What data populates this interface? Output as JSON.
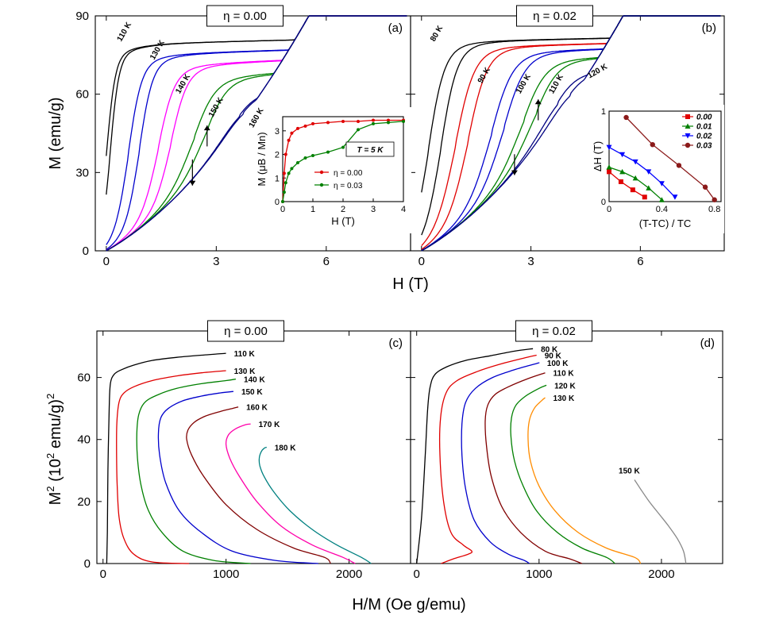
{
  "chart_data": [
    {
      "id": "a",
      "type": "line",
      "panel_label": "(a)",
      "header": "η = 0.00",
      "xlabel": "H (T)",
      "ylabel": "M (emu/g)",
      "xlim": [
        -0.3,
        8.3
      ],
      "ylim": [
        0,
        90
      ],
      "xticks": [
        0,
        3,
        6
      ],
      "yticks": [
        0,
        30,
        60,
        90
      ],
      "arrow_note": "down arrow on decreasing-field branch, up arrow on increasing-field branch near 150 K",
      "series": [
        {
          "name": "110 K",
          "color": "#000000",
          "Hc": 0.05,
          "w": 0.12,
          "Msat": 79.0,
          "slope": 0.35,
          "hyst": 0.1
        },
        {
          "name": "130 K",
          "color": "#0000cc",
          "Hc": 0.75,
          "w": 0.18,
          "Msat": 75.0,
          "slope": 0.45,
          "hyst": 0.3
        },
        {
          "name": "140 K",
          "color": "#ff00ff",
          "Hc": 1.6,
          "w": 0.22,
          "Msat": 71.0,
          "slope": 0.6,
          "hyst": 0.35
        },
        {
          "name": "150 K",
          "color": "#008000",
          "Hc": 2.6,
          "w": 0.3,
          "Msat": 66.0,
          "slope": 1.0,
          "hyst": 0.35
        },
        {
          "name": "160 K",
          "color": "#000080",
          "Hc": 3.7,
          "w": 0.33,
          "Msat": 60.0,
          "slope": 1.4,
          "hyst": 0.1
        }
      ],
      "inset": {
        "type": "line",
        "xlabel": "H (T)",
        "ylabel": "M (μB / Mn)",
        "xlim": [
          0,
          4
        ],
        "ylim": [
          0,
          3.6
        ],
        "xticks": [
          0,
          1,
          2,
          3,
          4
        ],
        "yticks": [
          0,
          1,
          2,
          3
        ],
        "note": "T = 5 K",
        "series": [
          {
            "name": "η = 0.00",
            "color": "#e00000",
            "x": [
              0,
              0.05,
              0.1,
              0.2,
              0.3,
              0.5,
              0.75,
              1.0,
              1.5,
              2.0,
              2.5,
              3.0,
              3.5,
              4.0
            ],
            "y": [
              0,
              1.2,
              2.0,
              2.6,
              2.9,
              3.1,
              3.2,
              3.3,
              3.35,
              3.4,
              3.4,
              3.45,
              3.45,
              3.45
            ]
          },
          {
            "name": "η = 0.03",
            "color": "#008000",
            "x": [
              0,
              0.05,
              0.1,
              0.2,
              0.3,
              0.5,
              0.75,
              1.0,
              1.5,
              2.0,
              2.5,
              3.0,
              3.5,
              4.0
            ],
            "y": [
              0,
              0.4,
              0.8,
              1.2,
              1.4,
              1.65,
              1.85,
              1.95,
              2.1,
              2.3,
              3.05,
              3.3,
              3.35,
              3.4
            ]
          }
        ]
      }
    },
    {
      "id": "b",
      "type": "line",
      "panel_label": "(b)",
      "header": "η = 0.02",
      "xlabel": "H (T)",
      "ylabel": "M (emu/g)",
      "xlim": [
        -0.3,
        8.3
      ],
      "ylim": [
        0,
        90
      ],
      "xticks": [
        0,
        3,
        6
      ],
      "yticks": [
        0,
        30,
        60,
        90
      ],
      "series": [
        {
          "name": "80 K",
          "color": "#000000",
          "Hc": 0.35,
          "w": 0.22,
          "Msat": 80.0,
          "slope": 0.3,
          "hyst": 0.35
        },
        {
          "name": "90 K",
          "color": "#e00000",
          "Hc": 1.1,
          "w": 0.26,
          "Msat": 78.0,
          "slope": 0.35,
          "hyst": 0.35
        },
        {
          "name": "100 K",
          "color": "#0000cc",
          "Hc": 2.1,
          "w": 0.3,
          "Msat": 76.0,
          "slope": 0.45,
          "hyst": 0.35
        },
        {
          "name": "110 K",
          "color": "#008000",
          "Hc": 3.0,
          "w": 0.32,
          "Msat": 73.0,
          "slope": 0.6,
          "hyst": 0.35
        },
        {
          "name": "120 K",
          "color": "#000080",
          "Hc": 3.9,
          "w": 0.35,
          "Msat": 68.0,
          "slope": 0.9,
          "hyst": 0.35
        }
      ],
      "inset": {
        "type": "line",
        "xlabel": "(T-TC) / TC",
        "ylabel": "ΔH (T)",
        "xlim": [
          0,
          0.85
        ],
        "ylim": [
          0,
          1
        ],
        "xticks": [
          0.0,
          0.4,
          0.8
        ],
        "yticks": [
          0,
          1
        ],
        "series": [
          {
            "name": "0.00",
            "color": "#e00000",
            "marker": "square",
            "x": [
              0,
              0.09,
              0.18,
              0.27
            ],
            "y": [
              0.33,
              0.22,
              0.13,
              0.05
            ]
          },
          {
            "name": "0.01",
            "color": "#008000",
            "marker": "triangle-up",
            "x": [
              0,
              0.1,
              0.2,
              0.3,
              0.4
            ],
            "y": [
              0.38,
              0.33,
              0.26,
              0.15,
              0.02
            ]
          },
          {
            "name": "0.02",
            "color": "#0000ff",
            "marker": "triangle-down",
            "x": [
              0,
              0.1,
              0.2,
              0.3,
              0.4,
              0.5
            ],
            "y": [
              0.6,
              0.52,
              0.44,
              0.33,
              0.2,
              0.05
            ]
          },
          {
            "name": "0.03",
            "color": "#8b1a1a",
            "marker": "circle",
            "x": [
              0.13,
              0.33,
              0.53,
              0.73,
              0.8
            ],
            "y": [
              0.93,
              0.63,
              0.4,
              0.16,
              0.02
            ]
          }
        ]
      }
    },
    {
      "id": "c",
      "type": "line",
      "panel_label": "(c)",
      "header": "η = 0.00",
      "xlabel": "H/M (Oe g/emu)",
      "ylabel": "M2 (102 emu/g)2",
      "xlim": [
        -50,
        2500
      ],
      "ylim": [
        0,
        75
      ],
      "xticks": [
        0,
        1000,
        2000
      ],
      "yticks": [
        0,
        20,
        40,
        60
      ],
      "series": [
        {
          "name": "110 K",
          "color": "#000000",
          "x": [
            30,
            35,
            40,
            50,
            60,
            90,
            150,
            250,
            400,
            600,
            800,
            1000
          ],
          "y": [
            0,
            10,
            30,
            50,
            58,
            61,
            62.5,
            64,
            65.5,
            66.5,
            67.2,
            67.8
          ]
        },
        {
          "name": "130 K",
          "color": "#e00000",
          "x": [
            700,
            400,
            250,
            170,
            130,
            115,
            110,
            112,
            130,
            170,
            250,
            400,
            600,
            800,
            1000
          ],
          "y": [
            0,
            0.5,
            3,
            8,
            15,
            25,
            35,
            45,
            52,
            55,
            57,
            59,
            60.5,
            61.5,
            62.2
          ]
        },
        {
          "name": "140 K",
          "color": "#008000",
          "x": [
            1200,
            900,
            650,
            480,
            370,
            310,
            280,
            275,
            290,
            340,
            450,
            600,
            800,
            1000,
            1080
          ],
          "y": [
            0,
            1,
            4,
            10,
            17,
            25,
            34,
            42,
            48,
            52,
            54.5,
            56.5,
            58,
            59,
            59.5
          ]
        },
        {
          "name": "150 K",
          "color": "#0000cc",
          "x": [
            1750,
            1400,
            1050,
            800,
            620,
            510,
            460,
            450,
            470,
            530,
            650,
            800,
            950,
            1060
          ],
          "y": [
            0,
            1,
            4,
            10,
            17,
            26,
            35,
            42,
            47,
            50,
            52.5,
            54,
            55,
            55.5
          ]
        },
        {
          "name": "160 K",
          "color": "#800000",
          "x": [
            1850,
            1800,
            1550,
            1250,
            1000,
            820,
            720,
            680,
            690,
            740,
            830,
            950,
            1050,
            1100
          ],
          "y": [
            0,
            2,
            5,
            11,
            19,
            28,
            35,
            40,
            43,
            45.5,
            47.5,
            49,
            50,
            50.5
          ]
        },
        {
          "name": "170 K",
          "color": "#ff00aa",
          "x": [
            2050,
            1950,
            1700,
            1450,
            1250,
            1110,
            1030,
            1000,
            1020,
            1080,
            1160,
            1200
          ],
          "y": [
            0,
            2,
            6,
            12,
            20,
            28,
            34,
            38.5,
            41.5,
            43.5,
            44.8,
            45
          ]
        },
        {
          "name": "180 K",
          "color": "#008080",
          "x": [
            2180,
            2100,
            1900,
            1700,
            1520,
            1390,
            1310,
            1275,
            1270,
            1285,
            1310,
            1330
          ],
          "y": [
            0,
            2,
            6,
            11,
            17,
            23,
            28,
            31.5,
            34,
            36,
            37.2,
            37.5
          ]
        }
      ]
    },
    {
      "id": "d",
      "type": "line",
      "panel_label": "(d)",
      "header": "η = 0.02",
      "xlabel": "H/M (Oe g/emu)",
      "ylabel": "M2 (102 emu/g)2",
      "xlim": [
        -50,
        2500
      ],
      "ylim": [
        0,
        75
      ],
      "xticks": [
        0,
        1000,
        2000
      ],
      "yticks": [
        0,
        20,
        40,
        60
      ],
      "series": [
        {
          "name": "80 K",
          "color": "#000000",
          "x": [
            0,
            40,
            70,
            90,
            110,
            150,
            250,
            400,
            600,
            800,
            950
          ],
          "y": [
            0,
            15,
            35,
            50,
            57,
            61,
            63.5,
            65.5,
            67,
            68.5,
            69.3
          ]
        },
        {
          "name": "90 K",
          "color": "#e00000",
          "x": [
            200,
            300,
            420,
            450,
            380,
            280,
            220,
            190,
            195,
            240,
            330,
            500,
            700,
            900,
            980
          ],
          "y": [
            0,
            1.5,
            3,
            4,
            6,
            10,
            20,
            35,
            47,
            55,
            59,
            62,
            64.5,
            66.5,
            67.2
          ]
        },
        {
          "name": "100 K",
          "color": "#0000cc",
          "x": [
            920,
            880,
            750,
            600,
            470,
            400,
            370,
            370,
            400,
            480,
            620,
            800,
            980,
            1000
          ],
          "y": [
            0,
            1,
            3,
            7,
            14,
            24,
            35,
            45,
            52,
            56.5,
            60,
            62.5,
            64.5,
            64.8
          ]
        },
        {
          "name": "110 K",
          "color": "#800000",
          "x": [
            1350,
            1250,
            1050,
            850,
            700,
            610,
            570,
            560,
            580,
            640,
            750,
            900,
            1050
          ],
          "y": [
            0,
            1.5,
            4,
            10,
            18,
            28,
            38,
            46,
            51,
            54.5,
            57,
            59.5,
            61.5
          ]
        },
        {
          "name": "120 K",
          "color": "#008000",
          "x": [
            1620,
            1550,
            1350,
            1150,
            980,
            870,
            800,
            770,
            775,
            810,
            890,
            1000,
            1060
          ],
          "y": [
            0,
            2,
            5,
            10,
            17,
            25,
            33,
            41,
            47,
            51,
            54,
            56.5,
            57.5
          ]
        },
        {
          "name": "130 K",
          "color": "#ff8c00",
          "x": [
            1830,
            1780,
            1550,
            1320,
            1130,
            1000,
            930,
            910,
            920,
            960,
            1020,
            1050
          ],
          "y": [
            0,
            2,
            5,
            10,
            17,
            25,
            33,
            40,
            46,
            50,
            52.5,
            53.5
          ]
        },
        {
          "name": "150 K",
          "color": "#888888",
          "x": [
            2200,
            2180,
            2130,
            2060,
            1980,
            1900,
            1830,
            1780
          ],
          "y": [
            0,
            4,
            8,
            12,
            16,
            20,
            24,
            27
          ]
        }
      ]
    }
  ],
  "labels": {
    "xlabel_top": "H (T)",
    "xlabel_bottom": "H/M (Oe g/emu)",
    "ylabel_top": "M (emu/g)",
    "ylabel_bottom_main": "M",
    "ylabel_bottom_sup": "2",
    "ylabel_bottom_mid": " (10",
    "ylabel_bottom_sup2": "2",
    "ylabel_bottom_end": " emu/g)",
    "ylabel_bottom_sup3": "2"
  }
}
